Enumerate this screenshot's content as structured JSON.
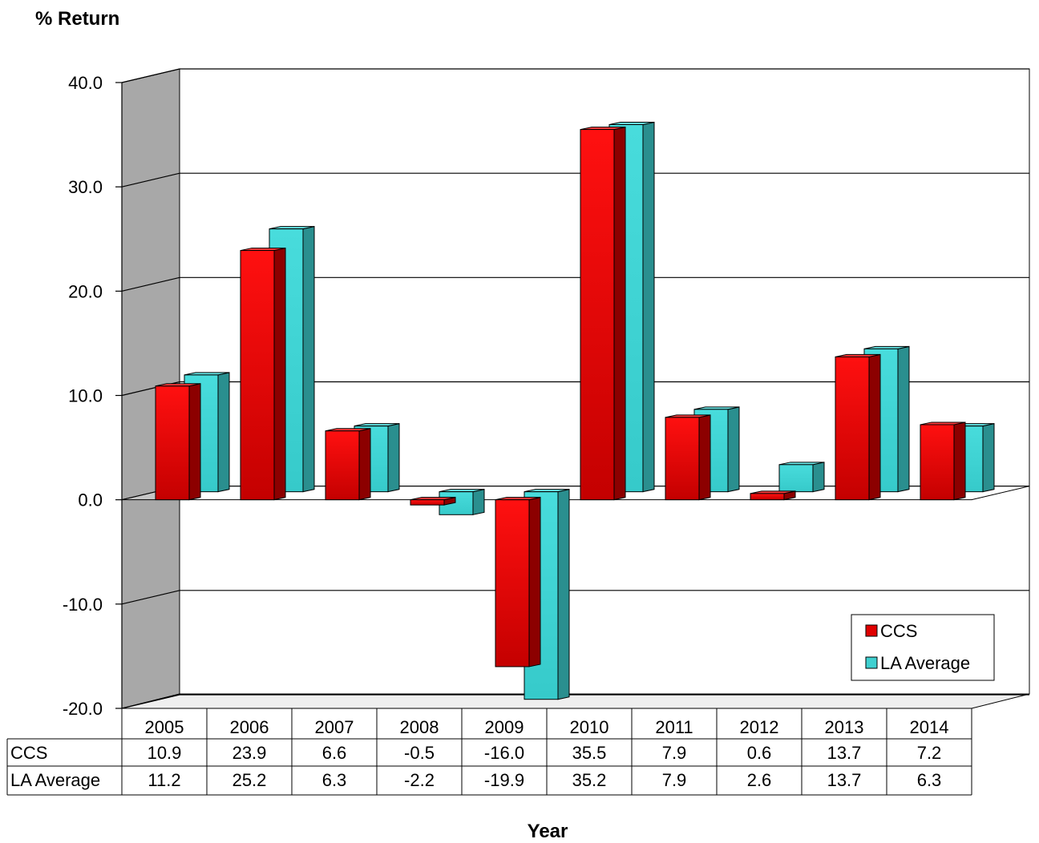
{
  "chart_data": {
    "type": "bar",
    "ylabel": "% Return",
    "xlabel": "Year",
    "categories": [
      "2005",
      "2006",
      "2007",
      "2008",
      "2009",
      "2010",
      "2011",
      "2012",
      "2013",
      "2014"
    ],
    "series": [
      {
        "name": "CCS",
        "color": "#e00000",
        "values": [
          10.9,
          23.9,
          6.6,
          -0.5,
          -16.0,
          35.5,
          7.9,
          0.6,
          13.7,
          7.2
        ],
        "labels": [
          "10.9",
          "23.9",
          "6.6",
          "-0.5",
          "-16.0",
          "35.5",
          "7.9",
          "0.6",
          "13.7",
          "7.2"
        ]
      },
      {
        "name": "LA Average",
        "color": "#40d0d0",
        "values": [
          11.2,
          25.2,
          6.3,
          -2.2,
          -19.9,
          35.2,
          7.9,
          2.6,
          13.7,
          6.3
        ],
        "labels": [
          "11.2",
          "25.2",
          "6.3",
          "-2.2",
          "-19.9",
          "35.2",
          "7.9",
          "2.6",
          "13.7",
          "6.3"
        ]
      }
    ],
    "yticks": [
      "40.0",
      "30.0",
      "20.0",
      "10.0",
      "0.0",
      "-10.0",
      "-20.0"
    ],
    "ylim": [
      -20,
      40
    ],
    "grid": true,
    "legend_position": "bottom-right",
    "data_table": true
  }
}
